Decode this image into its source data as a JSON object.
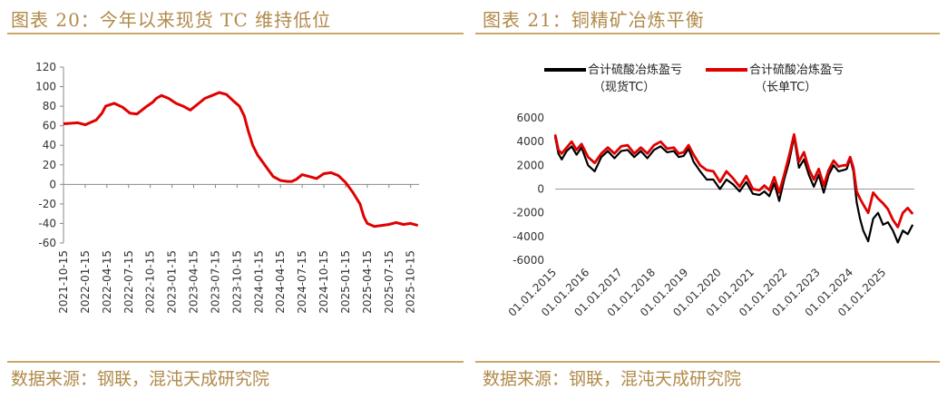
{
  "left": {
    "title": "图表 20：今年以来现货 TC 维持低位",
    "source": "数据来源：钢联，混沌天成研究院"
  },
  "right": {
    "title": "图表 21：铜精矿冶炼平衡",
    "source": "数据来源：钢联，混沌天成研究院"
  },
  "colors": {
    "accent": "#c9a86a",
    "red": "#e00000",
    "black": "#000000"
  },
  "chart_data": [
    {
      "type": "line",
      "title": "",
      "xlabel": "",
      "ylabel": "",
      "ylim": [
        -60,
        120
      ],
      "yticks": [
        120,
        100,
        80,
        60,
        40,
        20,
        0,
        -20,
        -40,
        -60
      ],
      "xticks": [
        "2021-10-15",
        "2022-01-15",
        "2022-04-15",
        "2022-07-15",
        "2022-10-15",
        "2023-01-15",
        "2023-04-15",
        "2023-07-15",
        "2023-10-15",
        "2024-01-15",
        "2024-04-15",
        "2024-07-15",
        "2024-10-15",
        "2025-01-15",
        "2025-04-15",
        "2025-07-15",
        "2025-10-15"
      ],
      "legend": "none",
      "grid": false,
      "series": [
        {
          "color": "#e00000",
          "x": [
            "2021-10-15",
            "2021-12-15",
            "2022-01-15",
            "2022-03-01",
            "2022-03-25",
            "2022-04-10",
            "2022-05-15",
            "2022-06-20",
            "2022-07-20",
            "2022-08-20",
            "2022-10-01",
            "2022-10-25",
            "2022-11-10",
            "2022-12-01",
            "2023-01-01",
            "2023-02-01",
            "2023-03-01",
            "2023-04-01",
            "2023-05-01",
            "2023-06-01",
            "2023-07-01",
            "2023-08-01",
            "2023-09-01",
            "2023-10-01",
            "2023-10-25",
            "2023-11-15",
            "2023-12-01",
            "2023-12-20",
            "2024-01-10",
            "2024-01-25",
            "2024-02-15",
            "2024-03-15",
            "2024-04-15",
            "2024-05-15",
            "2024-06-01",
            "2024-06-20",
            "2024-07-15",
            "2024-08-15",
            "2024-09-15",
            "2024-10-15",
            "2024-11-15",
            "2024-12-15",
            "2025-01-15",
            "2025-02-15",
            "2025-03-15",
            "2025-03-31",
            "2025-04-15",
            "2025-05-15",
            "2025-06-15",
            "2025-07-15",
            "2025-08-15",
            "2025-09-15",
            "2025-10-15",
            "2025-11-15"
          ],
          "y": [
            62,
            63,
            61,
            66,
            73,
            80,
            83,
            79,
            73,
            72,
            80,
            84,
            88,
            91,
            88,
            83,
            80,
            76,
            82,
            88,
            91,
            94,
            92,
            85,
            80,
            70,
            55,
            40,
            30,
            25,
            18,
            8,
            4,
            3,
            3,
            5,
            10,
            8,
            6,
            11,
            12,
            9,
            2,
            -8,
            -20,
            -33,
            -40,
            -43,
            -42,
            -41,
            -39,
            -41,
            -40,
            -42
          ]
        }
      ]
    },
    {
      "type": "line",
      "title": "",
      "xlabel": "",
      "ylabel": "",
      "ylim": [
        -6000,
        6000
      ],
      "yticks": [
        6000,
        4000,
        2000,
        0,
        -2000,
        -4000,
        -6000
      ],
      "xticks": [
        "01.01.2015",
        "01.01.2016",
        "01.01.2017",
        "01.01.2018",
        "01.01.2019",
        "01.01.2020",
        "01.01.2021",
        "01.01.2022",
        "01.01.2023",
        "01.01.2024",
        "01.01.2025"
      ],
      "legend": "top",
      "grid": false,
      "series": [
        {
          "name": "合计硫酸冶炼盈亏（现货TC）",
          "color": "#000000",
          "x": [
            2015.0,
            2015.1,
            2015.2,
            2015.35,
            2015.5,
            2015.65,
            2015.8,
            2016.0,
            2016.2,
            2016.4,
            2016.6,
            2016.8,
            2017.0,
            2017.2,
            2017.4,
            2017.6,
            2017.8,
            2018.0,
            2018.2,
            2018.4,
            2018.6,
            2018.75,
            2018.9,
            2019.05,
            2019.2,
            2019.4,
            2019.6,
            2019.8,
            2020.0,
            2020.2,
            2020.4,
            2020.6,
            2020.8,
            2021.0,
            2021.2,
            2021.35,
            2021.5,
            2021.65,
            2021.8,
            2021.95,
            2022.1,
            2022.25,
            2022.4,
            2022.55,
            2022.7,
            2022.85,
            2023.0,
            2023.15,
            2023.3,
            2023.45,
            2023.6,
            2023.75,
            2023.85,
            2023.95,
            2024.05,
            2024.15,
            2024.25,
            2024.35,
            2024.5,
            2024.65,
            2024.8,
            2024.95,
            2025.1,
            2025.25,
            2025.4,
            2025.55,
            2025.7,
            2025.85
          ],
          "y": [
            4400,
            3000,
            2500,
            3200,
            3600,
            2900,
            3500,
            2000,
            1500,
            2700,
            3200,
            2600,
            3200,
            3300,
            2700,
            3200,
            2600,
            3300,
            3600,
            3100,
            3200,
            2700,
            2800,
            3400,
            2300,
            1500,
            800,
            800,
            0,
            800,
            400,
            -200,
            600,
            -400,
            -500,
            -200,
            -600,
            500,
            -1000,
            800,
            2300,
            4400,
            1800,
            2500,
            1200,
            200,
            1200,
            -300,
            1200,
            2000,
            1500,
            1600,
            1700,
            2600,
            1500,
            -1100,
            -2500,
            -3500,
            -4400,
            -2500,
            -2000,
            -3000,
            -2800,
            -3500,
            -4500,
            -3500,
            -3800,
            -3000
          ]
        },
        {
          "name": "合计硫酸冶炼盈亏（长单TC）",
          "color": "#e00000",
          "x": [
            2015.0,
            2015.1,
            2015.2,
            2015.35,
            2015.5,
            2015.65,
            2015.8,
            2016.0,
            2016.2,
            2016.4,
            2016.6,
            2016.8,
            2017.0,
            2017.2,
            2017.4,
            2017.6,
            2017.8,
            2018.0,
            2018.2,
            2018.4,
            2018.6,
            2018.75,
            2018.9,
            2019.05,
            2019.2,
            2019.4,
            2019.6,
            2019.8,
            2020.0,
            2020.2,
            2020.4,
            2020.6,
            2020.8,
            2021.0,
            2021.2,
            2021.35,
            2021.5,
            2021.65,
            2021.8,
            2021.95,
            2022.1,
            2022.25,
            2022.4,
            2022.55,
            2022.7,
            2022.85,
            2023.0,
            2023.15,
            2023.3,
            2023.45,
            2023.6,
            2023.75,
            2023.85,
            2023.95,
            2024.05,
            2024.15,
            2024.25,
            2024.35,
            2024.5,
            2024.65,
            2024.8,
            2024.95,
            2025.1,
            2025.25,
            2025.4,
            2025.55,
            2025.7,
            2025.85
          ],
          "y": [
            4600,
            3300,
            3000,
            3500,
            4000,
            3300,
            3800,
            2700,
            2200,
            3000,
            3500,
            3000,
            3600,
            3700,
            3000,
            3500,
            3000,
            3700,
            4000,
            3400,
            3500,
            3000,
            3100,
            3700,
            2900,
            2000,
            1600,
            1500,
            600,
            1500,
            900,
            200,
            1100,
            0,
            -100,
            300,
            -100,
            1000,
            -300,
            1200,
            2800,
            4600,
            2300,
            3100,
            1700,
            800,
            1700,
            300,
            1600,
            2400,
            1900,
            2000,
            2000,
            2700,
            1800,
            -200,
            -800,
            -1300,
            -2000,
            -300,
            -800,
            -1200,
            -1700,
            -2600,
            -3200,
            -2000,
            -1600,
            -2100
          ]
        }
      ]
    }
  ],
  "legend_labels": [
    {
      "line1": "合计硫酸冶炼盈亏",
      "line2": "（现货TC）"
    },
    {
      "line1": "合计硫酸冶炼盈亏",
      "line2": "（长单TC）"
    }
  ]
}
